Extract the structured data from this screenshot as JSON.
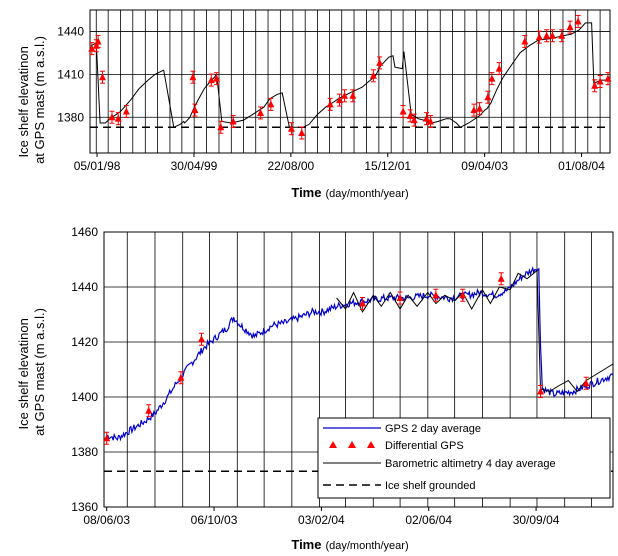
{
  "chart_data": [
    {
      "type": "line",
      "id": "top",
      "xlabel": "Time",
      "xlabel_unit": "(day/month/year)",
      "ylabel_line1": "Ice shelf elevatinon",
      "ylabel_line2": "at GPS mast (m a.s.l.)",
      "ylim": [
        1355,
        1455
      ],
      "yticks": [
        1380,
        1410,
        1440
      ],
      "xlim": [
        "1997-12-01",
        "2004-12-20"
      ],
      "xtick_labels": [
        "05/01/98",
        "30/04/99",
        "22/08/00",
        "15/12/01",
        "09/04/03",
        "01/08/04"
      ],
      "xtick_dates": [
        "1998-01-05",
        "1999-04-30",
        "2000-08-22",
        "2001-12-15",
        "2003-04-09",
        "2004-08-01"
      ],
      "grounded_level": 1373,
      "grid": true,
      "series": [
        {
          "name": "Barometric altimetry 4 day average",
          "style": "line",
          "color": "#000000",
          "x": [
            "1997-12-05",
            "1998-01-01",
            "1998-01-20",
            "1998-02-15",
            "1998-03-10",
            "1998-05-01",
            "1998-06-20",
            "1998-08-01",
            "1998-09-15",
            "1998-10-20",
            "1998-12-01",
            "1999-01-20",
            "1999-02-20",
            "1999-03-10",
            "1999-03-15",
            "1999-04-10",
            "1999-04-25",
            "1999-05-20",
            "1999-06-20",
            "1999-07-20",
            "1999-08-10",
            "1999-08-20",
            "1999-09-15",
            "1999-11-01",
            "2000-01-01",
            "2000-02-15",
            "2000-04-10",
            "2000-05-10",
            "2000-06-15",
            "2000-07-10",
            "2000-08-15",
            "2000-09-20",
            "2000-10-20",
            "2000-11-20",
            "2001-01-01",
            "2001-02-10",
            "2001-03-15",
            "2001-04-15",
            "2001-06-10",
            "2001-08-10",
            "2001-10-15",
            "2001-11-10",
            "2001-12-20",
            "2002-01-10",
            "2002-01-20",
            "2002-02-25",
            "2002-03-05",
            "2002-04-10",
            "2002-05-15",
            "2002-06-10",
            "2002-07-20",
            "2002-08-20",
            "2002-09-10",
            "2002-10-01",
            "2002-10-20",
            "2002-11-20",
            "2002-12-10",
            "2003-01-20",
            "2003-03-15",
            "2003-04-10",
            "2003-04-20",
            "2003-05-10",
            "2003-06-10",
            "2003-07-10",
            "2003-09-01",
            "2003-10-01",
            "2003-11-15",
            "2004-01-01",
            "2004-03-01",
            "2004-05-01",
            "2004-06-10",
            "2004-07-20",
            "2004-08-20",
            "2004-09-20",
            "2004-10-01",
            "2004-10-05",
            "2004-11-05",
            "2004-12-15"
          ],
          "y": [
            1430,
            1432,
            1376,
            1376,
            1379,
            1384,
            1392,
            1400,
            1406,
            1410,
            1413,
            1373,
            1375,
            1377,
            1376,
            1380,
            1385,
            1392,
            1400,
            1405,
            1408,
            1410,
            1377,
            1376,
            1378,
            1382,
            1387,
            1393,
            1396,
            1397,
            1373,
            1373,
            1373,
            1375,
            1382,
            1387,
            1390,
            1393,
            1397,
            1401,
            1409,
            1416,
            1422,
            1423,
            1415,
            1414,
            1426,
            1382,
            1379,
            1378,
            1376,
            1377,
            1378,
            1379,
            1379,
            1376,
            1373,
            1376,
            1381,
            1385,
            1386,
            1390,
            1400,
            1408,
            1419,
            1425,
            1430,
            1434,
            1435,
            1437,
            1438,
            1441,
            1446,
            1446,
            1403,
            1404,
            1406,
            1406
          ]
        },
        {
          "name": "Differential GPS",
          "style": "markers",
          "color": "#ff0000",
          "x": [
            "1997-12-10",
            "1998-01-01",
            "1998-01-10",
            "1998-02-01",
            "1998-03-20",
            "1998-04-20",
            "1998-05-30",
            "1999-04-25",
            "1999-05-05",
            "1999-07-25",
            "1999-08-20",
            "1999-09-10",
            "1999-11-10",
            "2000-03-25",
            "2000-05-15",
            "2000-08-25",
            "2000-10-15",
            "2001-03-05",
            "2001-04-20",
            "2001-05-15",
            "2001-06-25",
            "2001-10-05",
            "2001-11-05",
            "2002-03-01",
            "2002-04-05",
            "2002-04-25",
            "2002-06-25",
            "2002-07-15",
            "2003-02-15",
            "2003-03-15",
            "2003-04-25",
            "2003-05-15",
            "2003-06-20",
            "2003-10-25",
            "2004-01-05",
            "2004-02-10",
            "2004-03-10",
            "2004-04-25",
            "2004-06-05",
            "2004-07-15",
            "2004-10-05",
            "2004-11-01",
            "2004-12-10"
          ],
          "y": [
            1428,
            1430,
            1433,
            1408,
            1380,
            1379,
            1384,
            1408,
            1385,
            1406,
            1407,
            1373,
            1377,
            1383,
            1389,
            1372,
            1369,
            1389,
            1392,
            1395,
            1395,
            1409,
            1418,
            1384,
            1381,
            1378,
            1379,
            1377,
            1385,
            1386,
            1394,
            1407,
            1414,
            1433,
            1436,
            1437,
            1437,
            1437,
            1443,
            1447,
            1402,
            1405,
            1407
          ]
        }
      ]
    },
    {
      "type": "line",
      "id": "bottom",
      "xlabel": "Time",
      "xlabel_unit": "(day/month/year)",
      "ylabel_line1": "Ice shelf elevatinon",
      "ylabel_line2": "at GPS mast (m a.s.l.)",
      "ylim": [
        1360,
        1460
      ],
      "yticks": [
        1360,
        1380,
        1400,
        1420,
        1440,
        1460
      ],
      "xlim": [
        "2003-06-05",
        "2004-12-25"
      ],
      "xtick_labels": [
        "08/06/03",
        "06/10/03",
        "03/02/04",
        "02/06/04",
        "30/09/04"
      ],
      "xtick_dates": [
        "2003-06-08",
        "2003-10-06",
        "2004-02-03",
        "2004-06-02",
        "2004-09-30"
      ],
      "grounded_level": 1373,
      "grid": true,
      "legend_position": "bottom-right",
      "series": [
        {
          "name": "GPS 2 day average",
          "style": "line",
          "color": "#0000cc",
          "x": [
            "2003-06-08",
            "2003-06-20",
            "2003-07-05",
            "2003-07-20",
            "2003-08-01",
            "2003-08-15",
            "2003-08-25",
            "2003-09-10",
            "2003-09-25",
            "2003-10-06",
            "2003-10-20",
            "2003-10-28",
            "2003-11-05",
            "2003-11-20",
            "2003-12-10",
            "2003-12-25",
            "2004-01-10",
            "2004-01-25",
            "2004-02-05",
            "2004-02-20",
            "2004-03-05",
            "2004-03-25",
            "2004-04-15",
            "2004-05-10",
            "2004-06-01",
            "2004-06-25",
            "2004-07-15",
            "2004-07-30",
            "2004-08-15",
            "2004-08-30",
            "2004-09-05",
            "2004-09-15",
            "2004-09-25",
            "2004-10-01",
            "2004-10-03",
            "2004-10-05",
            "2004-10-07",
            "2004-10-20",
            "2004-11-10",
            "2004-11-25",
            "2004-12-10",
            "2004-12-25"
          ],
          "y": [
            1386,
            1385,
            1388,
            1391,
            1394,
            1400,
            1405,
            1412,
            1418,
            1421,
            1425,
            1429,
            1426,
            1422,
            1426,
            1427,
            1429,
            1431,
            1431,
            1433,
            1434,
            1435,
            1436,
            1436,
            1437,
            1436,
            1437,
            1438,
            1437,
            1439,
            1441,
            1444,
            1446,
            1447,
            1446,
            1420,
            1403,
            1401,
            1402,
            1404,
            1406,
            1408
          ]
        },
        {
          "name": "Differential GPS",
          "style": "markers",
          "color": "#ff0000",
          "x": [
            "2003-06-08",
            "2003-07-25",
            "2003-08-30",
            "2003-09-22",
            "2004-03-20",
            "2004-05-01",
            "2004-06-10",
            "2004-07-10",
            "2004-08-22",
            "2004-10-05",
            "2004-11-25"
          ],
          "y": [
            1385,
            1395,
            1407,
            1421,
            1434,
            1436,
            1437,
            1437,
            1443,
            1402,
            1405
          ]
        },
        {
          "name": "Barometric altimetry 4 day average",
          "style": "line",
          "color": "#000000",
          "x": [
            "2004-02-20",
            "2004-03-01",
            "2004-03-10",
            "2004-03-20",
            "2004-04-01",
            "2004-04-10",
            "2004-04-20",
            "2004-05-01",
            "2004-05-10",
            "2004-05-20",
            "2004-06-01",
            "2004-06-10",
            "2004-06-20",
            "2004-07-01",
            "2004-07-10",
            "2004-07-20",
            "2004-08-01",
            "2004-08-10",
            "2004-08-20",
            "2004-09-01",
            "2004-09-10",
            "2004-09-20",
            "2004-10-01",
            "2004-10-05",
            "2004-10-15",
            "2004-10-25",
            "2004-11-05",
            "2004-11-15",
            "2004-11-25",
            "2004-12-05",
            "2004-12-15",
            "2004-12-25"
          ],
          "y": [
            1436,
            1432,
            1438,
            1431,
            1437,
            1433,
            1438,
            1432,
            1437,
            1433,
            1438,
            1434,
            1437,
            1435,
            1438,
            1432,
            1439,
            1434,
            1440,
            1439,
            1445,
            1443,
            1446,
            1403,
            1402,
            1404,
            1406,
            1402,
            1406,
            1408,
            1410,
            1412
          ]
        },
        {
          "name": "Ice shelf grounded",
          "style": "dashed",
          "color": "#000000"
        }
      ]
    }
  ]
}
